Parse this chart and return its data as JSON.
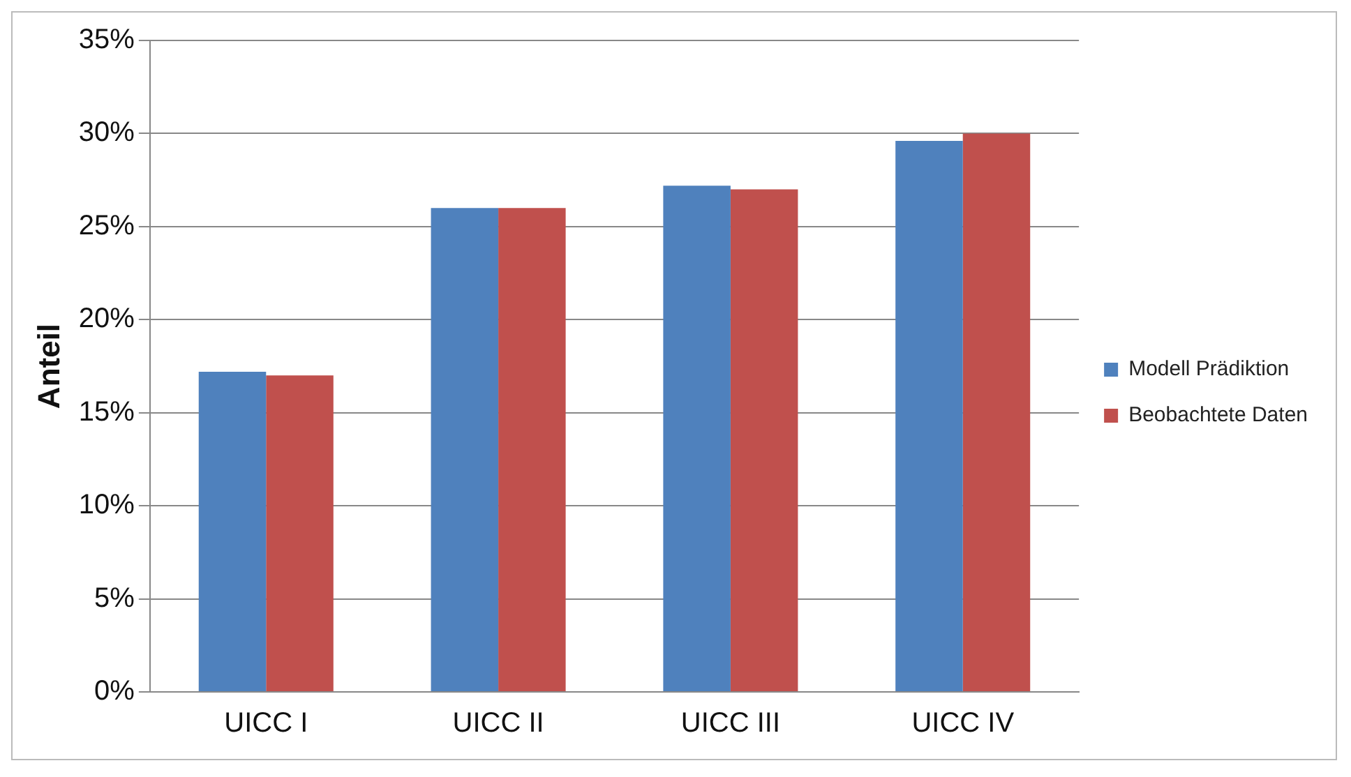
{
  "chart_data": {
    "type": "bar",
    "ylabel": "Anteil",
    "categories": [
      "UICC I",
      "UICC II",
      "UICC III",
      "UICC IV"
    ],
    "series": [
      {
        "name": "Modell Prädiktion",
        "color": "#4f81bd",
        "values": [
          17.2,
          26.0,
          27.2,
          29.6
        ]
      },
      {
        "name": "Beobachtete Daten",
        "color": "#c0504d",
        "values": [
          17.0,
          26.0,
          27.0,
          30.0
        ]
      }
    ],
    "ylim": [
      0,
      35
    ],
    "yticks": [
      {
        "value": 0,
        "label": "0%"
      },
      {
        "value": 5,
        "label": "5%"
      },
      {
        "value": 10,
        "label": "10%"
      },
      {
        "value": 15,
        "label": "15%"
      },
      {
        "value": 20,
        "label": "20%"
      },
      {
        "value": 25,
        "label": "25%"
      },
      {
        "value": 30,
        "label": "30%"
      },
      {
        "value": 35,
        "label": "35%"
      }
    ],
    "grid": "y",
    "legend": "right"
  }
}
